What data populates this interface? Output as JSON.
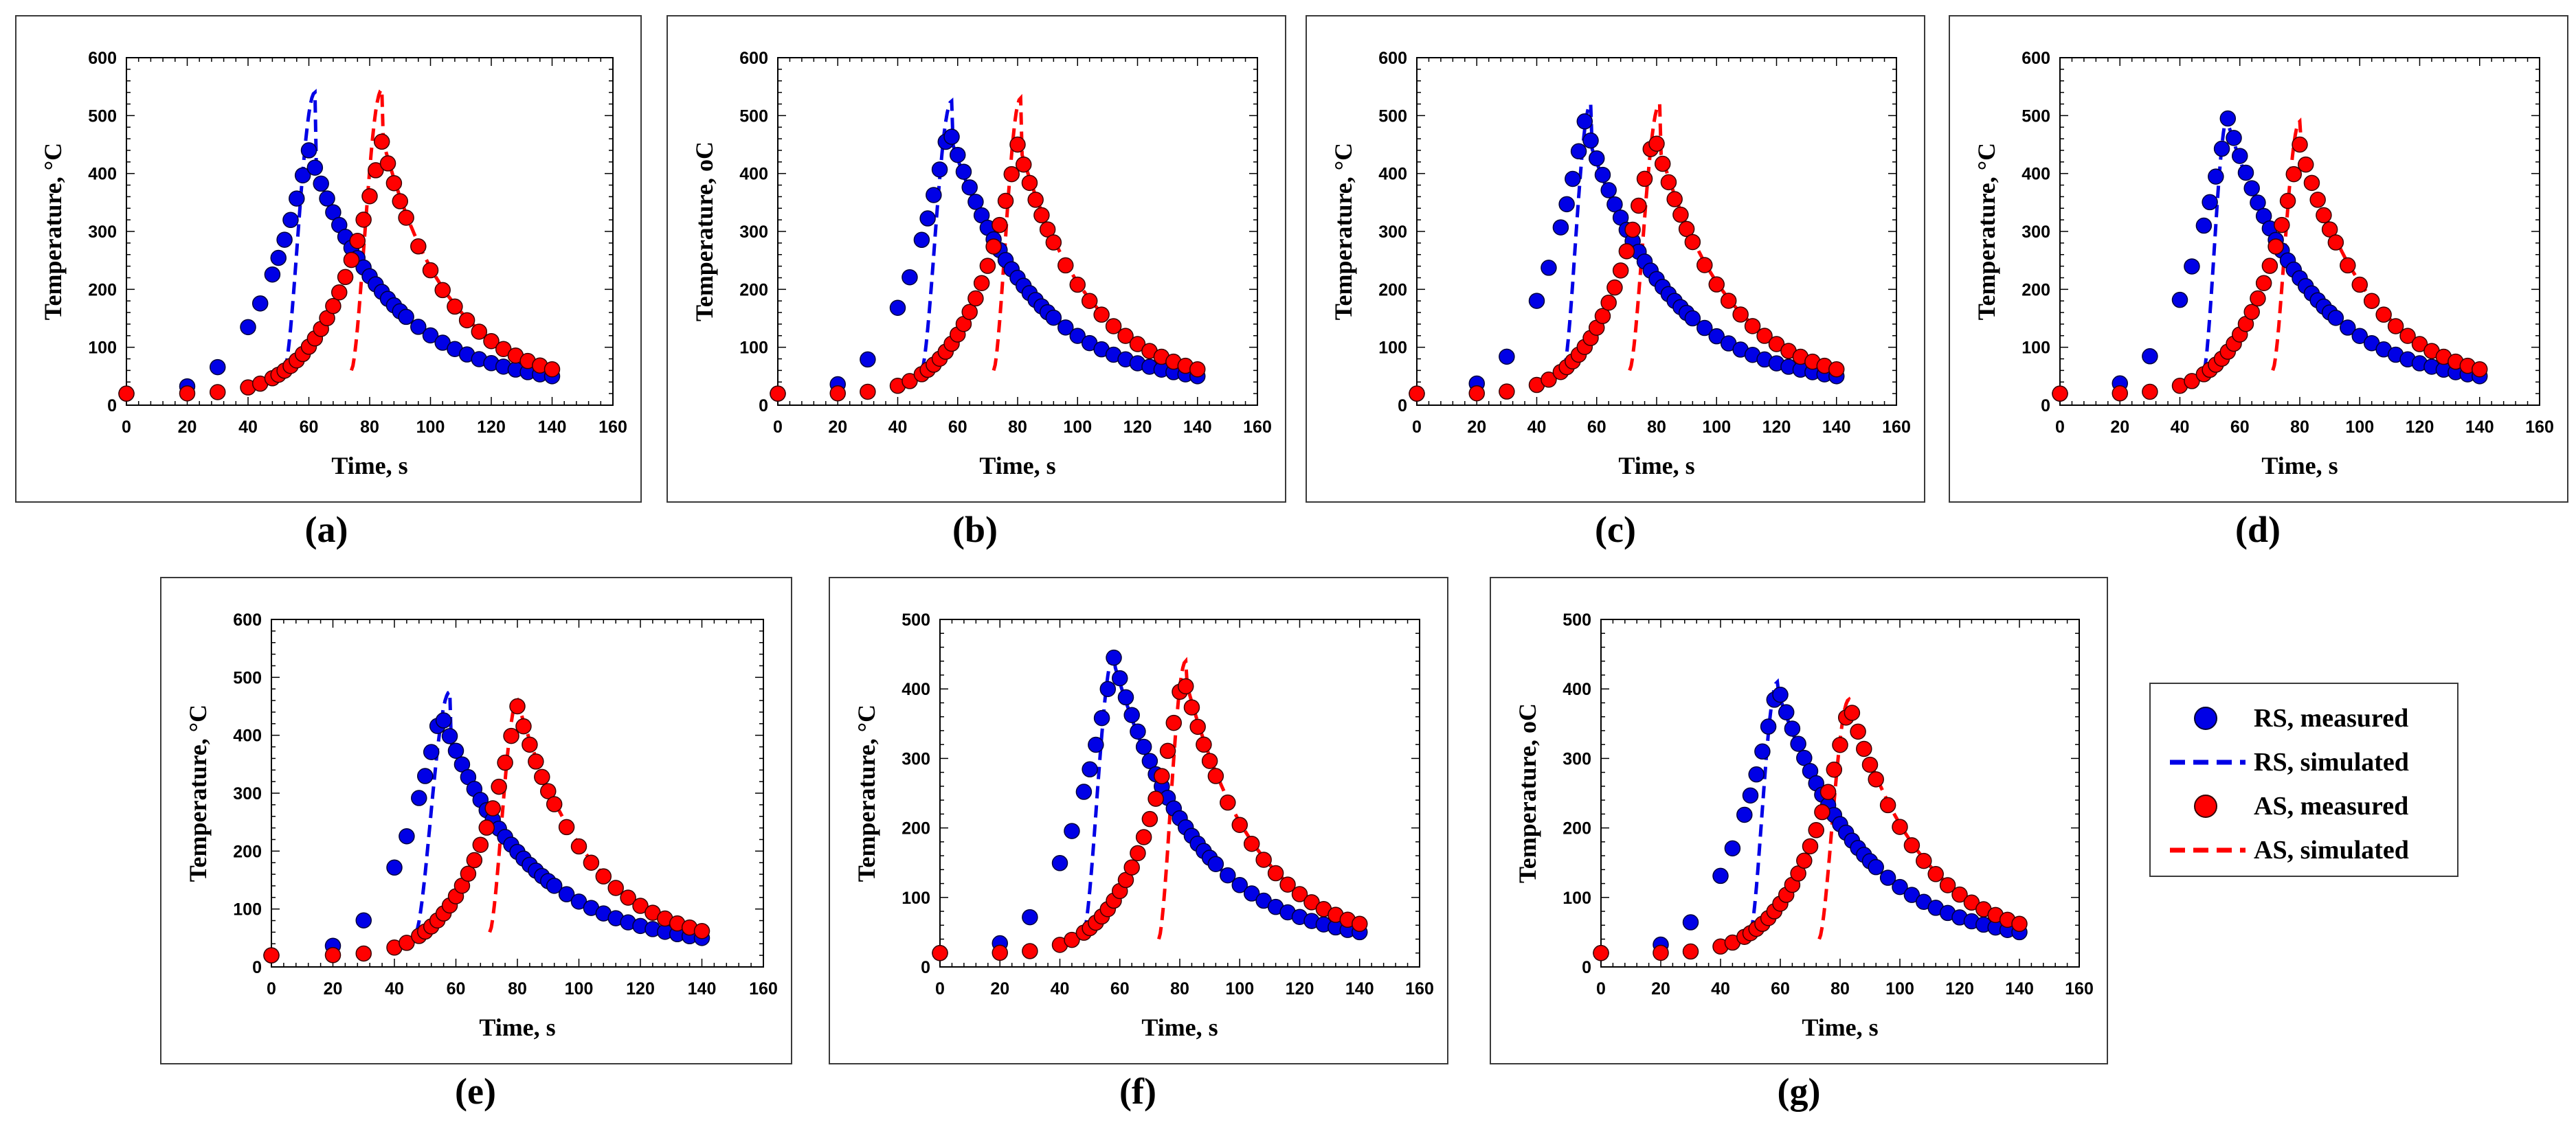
{
  "legend": {
    "items": [
      {
        "label": "RS, measured",
        "color": "#0000e6",
        "style": "marker"
      },
      {
        "label": "RS, simulated",
        "color": "#0000e6",
        "style": "dashed"
      },
      {
        "label": "AS, measured",
        "color": "#ff0000",
        "style": "marker"
      },
      {
        "label": "AS, simulated",
        "color": "#ff0000",
        "style": "dashed"
      }
    ]
  },
  "chart_data": [
    {
      "type": "scatter",
      "panel": "(a)",
      "title": "",
      "xlabel": "Time, s",
      "ylabel": "Temperature, °C",
      "xlim": [
        0,
        160
      ],
      "ylim": [
        0,
        600
      ],
      "xticks": [
        0,
        20,
        40,
        60,
        80,
        100,
        120,
        140,
        160
      ],
      "yticks": [
        0,
        100,
        200,
        300,
        400,
        500,
        600
      ],
      "rs_peak": [
        60,
        440
      ],
      "rs_sim_start": [
        52,
        60
      ],
      "rs_sim_peak": [
        62,
        540
      ],
      "as_peak": [
        84,
        455
      ],
      "as_sim_start": [
        74,
        60
      ],
      "as_sim_peak": [
        84,
        545
      ],
      "final": [
        140,
        50
      ]
    },
    {
      "type": "scatter",
      "panel": "(b)",
      "title": "",
      "xlabel": "Time, s",
      "ylabel": "Temperature, oC",
      "xlim": [
        0,
        160
      ],
      "ylim": [
        0,
        600
      ],
      "xticks": [
        0,
        20,
        40,
        60,
        80,
        100,
        120,
        140,
        160
      ],
      "yticks": [
        0,
        100,
        200,
        300,
        400,
        500,
        600
      ],
      "rs_peak": [
        57,
        480
      ],
      "rs_sim_start": [
        48,
        60
      ],
      "rs_sim_peak": [
        58,
        525
      ],
      "as_peak": [
        80,
        450
      ],
      "as_sim_start": [
        72,
        60
      ],
      "as_sim_peak": [
        81,
        530
      ],
      "final": [
        140,
        50
      ]
    },
    {
      "type": "scatter",
      "panel": "(c)",
      "title": "",
      "xlabel": "Time, s",
      "ylabel": "Temperature, °C",
      "xlim": [
        0,
        160
      ],
      "ylim": [
        0,
        600
      ],
      "xticks": [
        0,
        20,
        40,
        60,
        80,
        100,
        120,
        140,
        160
      ],
      "yticks": [
        0,
        100,
        200,
        300,
        400,
        500,
        600
      ],
      "rs_peak": [
        56,
        490
      ],
      "rs_sim_start": [
        49,
        60
      ],
      "rs_sim_peak": [
        58,
        520
      ],
      "as_peak": [
        79,
        470
      ],
      "as_sim_start": [
        71,
        60
      ],
      "as_sim_peak": [
        81,
        520
      ],
      "final": [
        140,
        50
      ]
    },
    {
      "type": "scatter",
      "panel": "(d)",
      "title": "",
      "xlabel": "Time, s",
      "ylabel": "Temperature, °C",
      "xlim": [
        0,
        160
      ],
      "ylim": [
        0,
        600
      ],
      "xticks": [
        0,
        20,
        40,
        60,
        80,
        100,
        120,
        140,
        160
      ],
      "yticks": [
        0,
        100,
        200,
        300,
        400,
        500,
        600
      ],
      "rs_peak": [
        56,
        495
      ],
      "rs_sim_start": [
        48,
        60
      ],
      "rs_sim_peak": [
        56,
        500
      ],
      "as_peak": [
        80,
        450
      ],
      "as_sim_start": [
        71,
        60
      ],
      "as_sim_peak": [
        80,
        490
      ],
      "final": [
        140,
        50
      ]
    },
    {
      "type": "scatter",
      "panel": "(e)",
      "title": "",
      "xlabel": "Time, s",
      "ylabel": "Temperature, °C",
      "xlim": [
        0,
        160
      ],
      "ylim": [
        0,
        600
      ],
      "xticks": [
        0,
        20,
        40,
        60,
        80,
        100,
        120,
        140,
        160
      ],
      "yticks": [
        0,
        100,
        200,
        300,
        400,
        500,
        600
      ],
      "rs_peak": [
        55,
        440
      ],
      "rs_sim_start": [
        47,
        60
      ],
      "rs_sim_peak": [
        58,
        475
      ],
      "as_peak": [
        80,
        450
      ],
      "as_sim_start": [
        71,
        60
      ],
      "as_sim_peak": [
        80,
        460
      ],
      "final": [
        140,
        50
      ]
    },
    {
      "type": "scatter",
      "panel": "(f)",
      "title": "",
      "xlabel": "Time, s",
      "ylabel": "Temperature, °C",
      "xlim": [
        0,
        160
      ],
      "ylim": [
        0,
        500
      ],
      "xticks": [
        0,
        20,
        40,
        60,
        80,
        100,
        120,
        140,
        160
      ],
      "yticks": [
        0,
        100,
        200,
        300,
        400,
        500
      ],
      "rs_peak": [
        58,
        445
      ],
      "rs_sim_start": [
        48,
        50
      ],
      "rs_sim_peak": [
        58,
        450
      ],
      "as_peak": [
        81,
        420
      ],
      "as_sim_start": [
        73,
        40
      ],
      "as_sim_peak": [
        82,
        440
      ],
      "final": [
        140,
        50
      ]
    },
    {
      "type": "scatter",
      "panel": "(g)",
      "title": "",
      "xlabel": "Time, s",
      "ylabel": "Temperature, oC",
      "xlim": [
        0,
        160
      ],
      "ylim": [
        0,
        500
      ],
      "xticks": [
        0,
        20,
        40,
        60,
        80,
        100,
        120,
        140,
        160
      ],
      "yticks": [
        0,
        100,
        200,
        300,
        400,
        500
      ],
      "rs_peak": [
        59,
        405
      ],
      "rs_sim_start": [
        50,
        50
      ],
      "rs_sim_peak": [
        59,
        410
      ],
      "as_peak": [
        83,
        380
      ],
      "as_sim_start": [
        73,
        40
      ],
      "as_sim_peak": [
        83,
        385
      ],
      "final": [
        140,
        50
      ]
    }
  ]
}
